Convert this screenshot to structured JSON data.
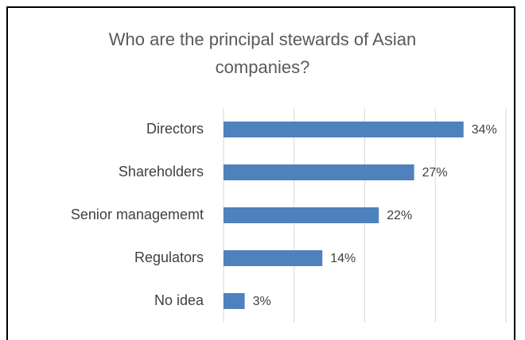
{
  "chart_data": {
    "type": "bar",
    "orientation": "horizontal",
    "title": "Who are the principal stewards of Asian companies?",
    "categories": [
      "Directors",
      "Shareholders",
      "Senior managememt",
      "Regulators",
      "No idea"
    ],
    "values": [
      34,
      27,
      22,
      14,
      3
    ],
    "value_labels": [
      "34%",
      "27%",
      "22%",
      "14%",
      "3%"
    ],
    "color": "#4f81bd",
    "xlim": [
      0,
      40
    ],
    "xticks": [
      0,
      10,
      20,
      30,
      40
    ],
    "grid": true
  }
}
